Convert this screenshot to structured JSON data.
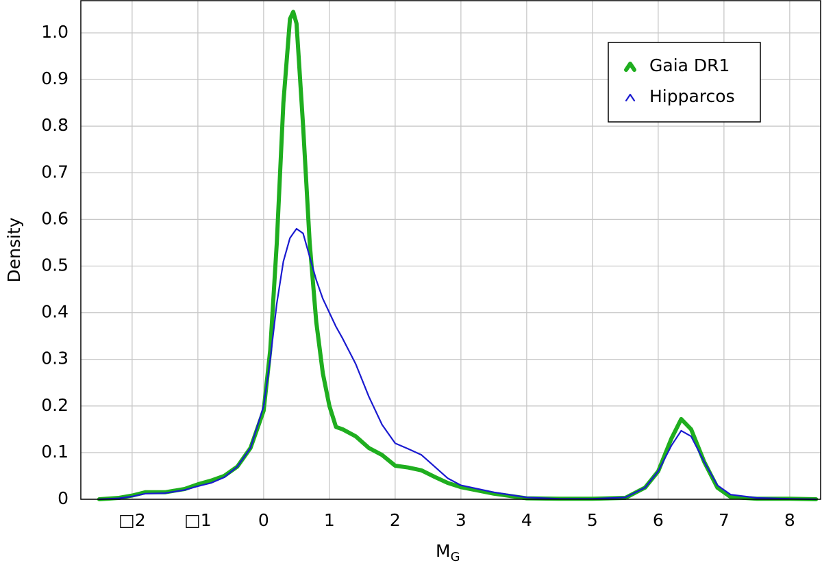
{
  "chart_data": {
    "type": "line",
    "xlabel": "M",
    "xlabel_sub": "G",
    "ylabel": "Density",
    "x": [
      -2.5,
      -2.2,
      -2.0,
      -1.8,
      -1.5,
      -1.2,
      -1.0,
      -0.8,
      -0.6,
      -0.4,
      -0.2,
      0,
      0.1,
      0.2,
      0.3,
      0.4,
      0.45,
      0.5,
      0.6,
      0.7,
      0.8,
      0.9,
      1.0,
      1.1,
      1.2,
      1.4,
      1.6,
      1.8,
      2.0,
      2.2,
      2.4,
      2.6,
      2.8,
      3.0,
      3.5,
      4.0,
      4.5,
      5.0,
      5.5,
      5.8,
      6.0,
      6.2,
      6.35,
      6.5,
      6.7,
      6.9,
      7.1,
      7.5,
      8.0,
      8.4
    ],
    "series": [
      {
        "name": "Gaia DR1",
        "color": "#1fae1f",
        "width": 6,
        "values": [
          0,
          0.003,
          0.008,
          0.015,
          0.015,
          0.022,
          0.032,
          0.04,
          0.05,
          0.07,
          0.11,
          0.19,
          0.32,
          0.55,
          0.85,
          1.03,
          1.045,
          1.02,
          0.8,
          0.55,
          0.38,
          0.27,
          0.2,
          0.155,
          0.15,
          0.135,
          0.11,
          0.095,
          0.072,
          0.068,
          0.062,
          0.048,
          0.035,
          0.026,
          0.012,
          0.002,
          0.001,
          0.001,
          0.003,
          0.025,
          0.06,
          0.13,
          0.172,
          0.15,
          0.08,
          0.025,
          0.005,
          0.001,
          0.001,
          0
        ]
      },
      {
        "name": "Hipparcos",
        "color": "#1a1ad0",
        "width": 2.2,
        "values": [
          0,
          0.002,
          0.006,
          0.012,
          0.013,
          0.02,
          0.028,
          0.035,
          0.047,
          0.07,
          0.11,
          0.2,
          0.3,
          0.42,
          0.51,
          0.56,
          0.57,
          0.58,
          0.57,
          0.52,
          0.47,
          0.43,
          0.4,
          0.37,
          0.345,
          0.29,
          0.22,
          0.16,
          0.12,
          0.108,
          0.095,
          0.07,
          0.045,
          0.03,
          0.015,
          0.004,
          0.001,
          0.001,
          0.004,
          0.025,
          0.06,
          0.115,
          0.147,
          0.135,
          0.08,
          0.03,
          0.01,
          0.003,
          0.001,
          0
        ]
      }
    ],
    "xlim": [
      -2.78,
      8.47
    ],
    "ylim": [
      0,
      1.069
    ],
    "xticks": [
      {
        "value": -2,
        "label": "□2"
      },
      {
        "value": -1,
        "label": "□1"
      },
      0,
      1,
      2,
      3,
      4,
      5,
      6,
      7,
      8
    ],
    "yticks": [
      0,
      0.1,
      0.2,
      0.3,
      0.4,
      0.5,
      0.6,
      0.7,
      0.8,
      0.9,
      {
        "value": 1,
        "label": "1.0"
      }
    ],
    "grid": true,
    "legend": "upper right"
  }
}
